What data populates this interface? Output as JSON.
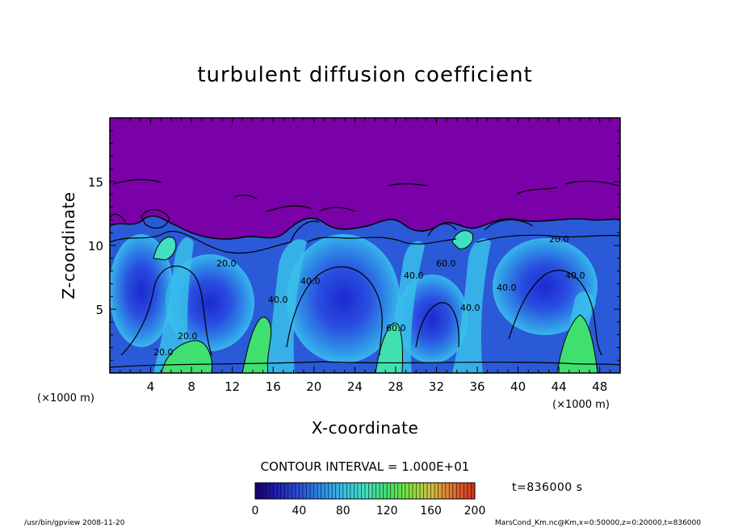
{
  "chart_data": {
    "type": "heatmap",
    "title": "turbulent diffusion coefficient",
    "xlabel": "X-coordinate",
    "ylabel": "Z-coordinate",
    "x_unit": "(×1000 m)",
    "y_unit": "(×1000 m)",
    "xlim": [
      0,
      50
    ],
    "ylim": [
      0,
      20
    ],
    "x_ticks": [
      "4",
      "8",
      "12",
      "16",
      "20",
      "24",
      "28",
      "32",
      "36",
      "40",
      "44",
      "48"
    ],
    "y_ticks": [
      "5",
      "10",
      "15"
    ],
    "contour_interval_label": "CONTOUR INTERVAL = 1.000E+01",
    "contour_labels": [
      "20.0",
      "40.0",
      "60.0",
      "40.0",
      "20.0",
      "20.0",
      "40.0",
      "60.0",
      "40.0",
      "20.0",
      "40.0",
      "40.0"
    ],
    "colorbar": {
      "min": 0,
      "max": 200,
      "ticks": [
        "0",
        "40",
        "80",
        "120",
        "160",
        "200"
      ],
      "colors": [
        "#1a0070",
        "#2020b0",
        "#2a50d8",
        "#2e8ae8",
        "#36c0e8",
        "#40e0c0",
        "#40e070",
        "#80e040",
        "#d0c040",
        "#e07030",
        "#d03020"
      ]
    },
    "background_color": "#7a00a8",
    "time_label": "t=836000 s"
  },
  "footer": {
    "left": "/usr/bin/gpview   2008-11-20",
    "right": "MarsCond_Km.nc@Km,x=0:50000,z=0:20000,t=836000"
  }
}
